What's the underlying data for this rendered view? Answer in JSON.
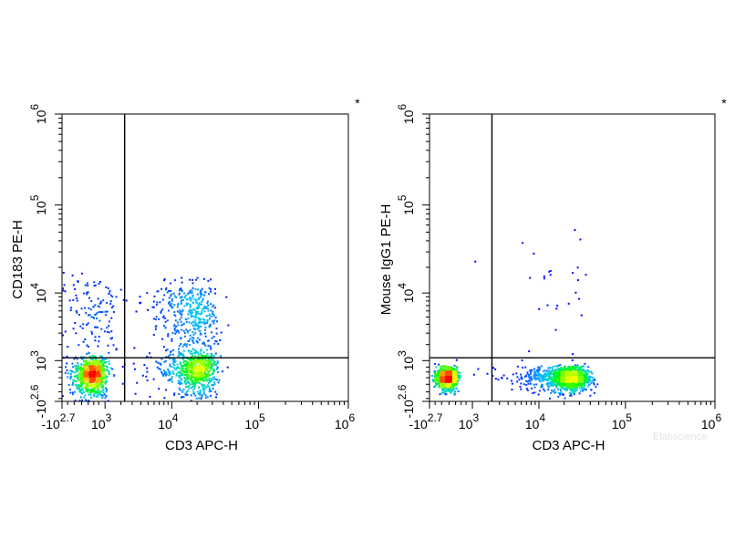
{
  "watermark": "Elabscience",
  "chart_data": [
    {
      "type": "scatter",
      "subtype": "flow-cytometry density dot plot",
      "marker": "*",
      "xlabel": "CD3 APC-H",
      "ylabel": "CD183 PE-H",
      "x_scale": "biexponential",
      "y_scale": "biexponential",
      "xlim": [
        -501,
        1000000
      ],
      "ylim": [
        -398,
        1000000
      ],
      "x_ticks": [
        {
          "value": -501,
          "base": "-10",
          "exp": "2.7"
        },
        {
          "value": 1000,
          "base": "10",
          "exp": "3"
        },
        {
          "value": 10000,
          "base": "10",
          "exp": "4"
        },
        {
          "value": 100000,
          "base": "10",
          "exp": "5"
        },
        {
          "value": 1000000,
          "base": "10",
          "exp": "6"
        }
      ],
      "y_ticks": [
        {
          "value": -398,
          "base": "-10",
          "exp": "2.6"
        },
        {
          "value": 1000,
          "base": "10",
          "exp": "3"
        },
        {
          "value": 10000,
          "base": "10",
          "exp": "4"
        },
        {
          "value": 100000,
          "base": "10",
          "exp": "5"
        },
        {
          "value": 1000000,
          "base": "10",
          "exp": "6"
        }
      ],
      "quadrant_gate": {
        "x": 2300,
        "y": 1150
      },
      "grid": false,
      "legend": "none",
      "color_scale": [
        "#0000ff",
        "#00c8ff",
        "#00ff00",
        "#ffff00",
        "#ff0000"
      ],
      "populations": [
        {
          "x_center": 450,
          "y_center": 400,
          "x_spread": 300,
          "y_spread": 350,
          "relative_count": 0.34
        },
        {
          "x_center": 450,
          "y_center": 3000,
          "x_spread": 600,
          "y_spread": 5000,
          "relative_count": 0.08
        },
        {
          "x_center": 20000,
          "y_center": 550,
          "x_spread": 7000,
          "y_spread": 400,
          "relative_count": 0.29
        },
        {
          "x_center": 17000,
          "y_center": 3500,
          "x_spread": 8000,
          "y_spread": 4500,
          "relative_count": 0.29
        }
      ]
    },
    {
      "type": "scatter",
      "subtype": "flow-cytometry density dot plot",
      "marker": "*",
      "xlabel": "CD3 APC-H",
      "ylabel": "Mouse IgG1 PE-H",
      "x_scale": "biexponential",
      "y_scale": "biexponential",
      "xlim": [
        -501,
        1000000
      ],
      "ylim": [
        -398,
        1000000
      ],
      "x_ticks": [
        {
          "value": -501,
          "base": "-10",
          "exp": "2.7"
        },
        {
          "value": 1000,
          "base": "10",
          "exp": "3"
        },
        {
          "value": 10000,
          "base": "10",
          "exp": "4"
        },
        {
          "value": 100000,
          "base": "10",
          "exp": "5"
        },
        {
          "value": 1000000,
          "base": "10",
          "exp": "6"
        }
      ],
      "y_ticks": [
        {
          "value": -398,
          "base": "-10",
          "exp": "2.6"
        },
        {
          "value": 1000,
          "base": "10",
          "exp": "3"
        },
        {
          "value": 10000,
          "base": "10",
          "exp": "4"
        },
        {
          "value": 100000,
          "base": "10",
          "exp": "5"
        },
        {
          "value": 1000000,
          "base": "10",
          "exp": "6"
        }
      ],
      "quadrant_gate": {
        "x": 2300,
        "y": 1150
      },
      "grid": false,
      "legend": "none",
      "color_scale": [
        "#0000ff",
        "#00c8ff",
        "#00ff00",
        "#ffff00",
        "#ff0000"
      ],
      "populations": [
        {
          "x_center": 50,
          "y_center": 300,
          "x_spread": 150,
          "y_spread": 170,
          "relative_count": 0.42
        },
        {
          "x_center": 22000,
          "y_center": 300,
          "x_spread": 8000,
          "y_spread": 200,
          "relative_count": 0.56
        },
        {
          "x_center": 20000,
          "y_center": 8000,
          "x_spread": 10000,
          "y_spread": 20000,
          "relative_count": 0.02
        }
      ]
    }
  ]
}
